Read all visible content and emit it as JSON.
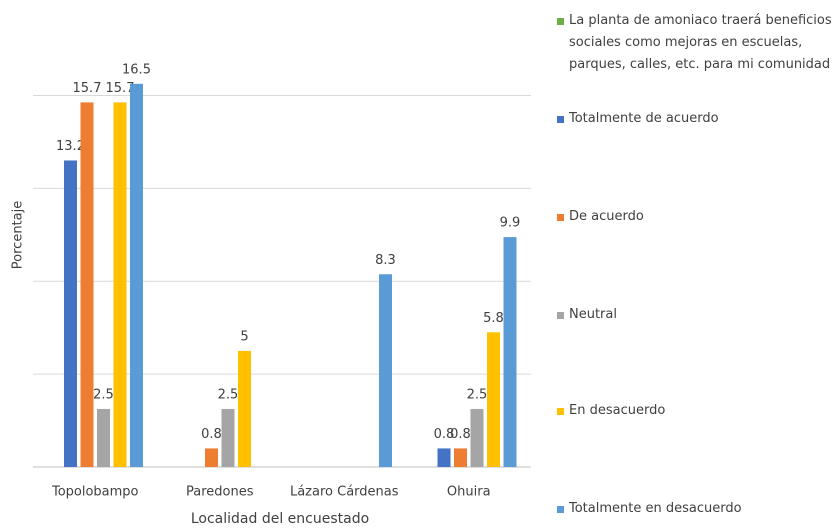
{
  "chart_data": {
    "type": "bar",
    "xlabel": "Localidad del encuestado",
    "ylabel": "Porcentaje",
    "categories": [
      "Topolobampo",
      "Paredones",
      "Lázaro Cárdenas",
      "Ohuira"
    ],
    "series": [
      {
        "name": "La planta de amoniaco traerá beneficios sociales como mejoras en escuelas, parques, calles, etc. para mi comunidad",
        "color": "#70ad47",
        "values": [
          null,
          null,
          null,
          null
        ]
      },
      {
        "name": "Totalmente de acuerdo",
        "color": "#4472c4",
        "values": [
          13.2,
          null,
          null,
          0.8
        ]
      },
      {
        "name": "De acuerdo",
        "color": "#ed7d31",
        "values": [
          15.7,
          0.8,
          null,
          0.8
        ]
      },
      {
        "name": "Neutral",
        "color": "#a5a5a5",
        "values": [
          2.5,
          2.5,
          null,
          2.5
        ]
      },
      {
        "name": "En desacuerdo",
        "color": "#ffc000",
        "values": [
          15.7,
          5,
          null,
          5.8
        ]
      },
      {
        "name": "Totalmente en desacuerdo",
        "color": "#5b9bd5",
        "values": [
          16.5,
          null,
          8.3,
          9.9
        ]
      }
    ],
    "ylim": [
      0,
      18
    ],
    "yticks": [
      0,
      4,
      8,
      12,
      16
    ],
    "grid": true,
    "legend": "right"
  }
}
